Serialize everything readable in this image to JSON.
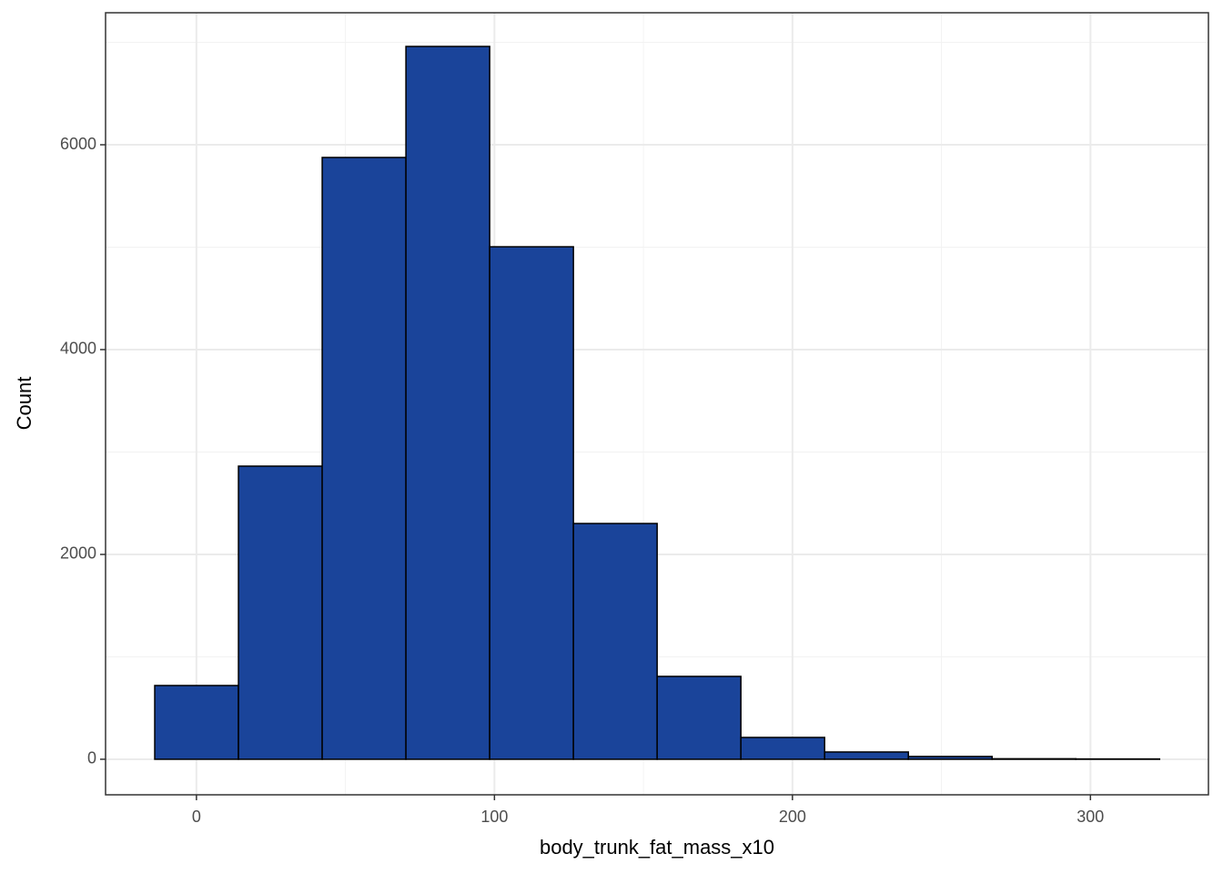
{
  "chart_data": {
    "type": "histogram",
    "x_label": "body_trunk_fat_mass_x10",
    "y_label": "Count",
    "bins": [
      -14,
      14.1,
      42.2,
      70.3,
      98.4,
      126.5,
      154.6,
      182.7,
      210.8,
      238.9,
      267,
      295.1,
      323.2
    ],
    "values": [
      720,
      2862,
      5876,
      6960,
      5004,
      2302,
      809,
      213,
      71,
      27,
      5,
      3
    ],
    "color": "#1a449a",
    "xlim": [
      -30.5,
      339.6
    ],
    "ylim": [
      -347,
      7289
    ],
    "xticks": [
      0,
      100,
      200,
      300
    ],
    "yticks": [
      0,
      2000,
      4000,
      6000
    ],
    "x_minor_ticks": [
      50,
      150,
      250
    ],
    "y_minor_ticks": [
      1000,
      3000,
      5000,
      7000
    ],
    "grid": true
  }
}
